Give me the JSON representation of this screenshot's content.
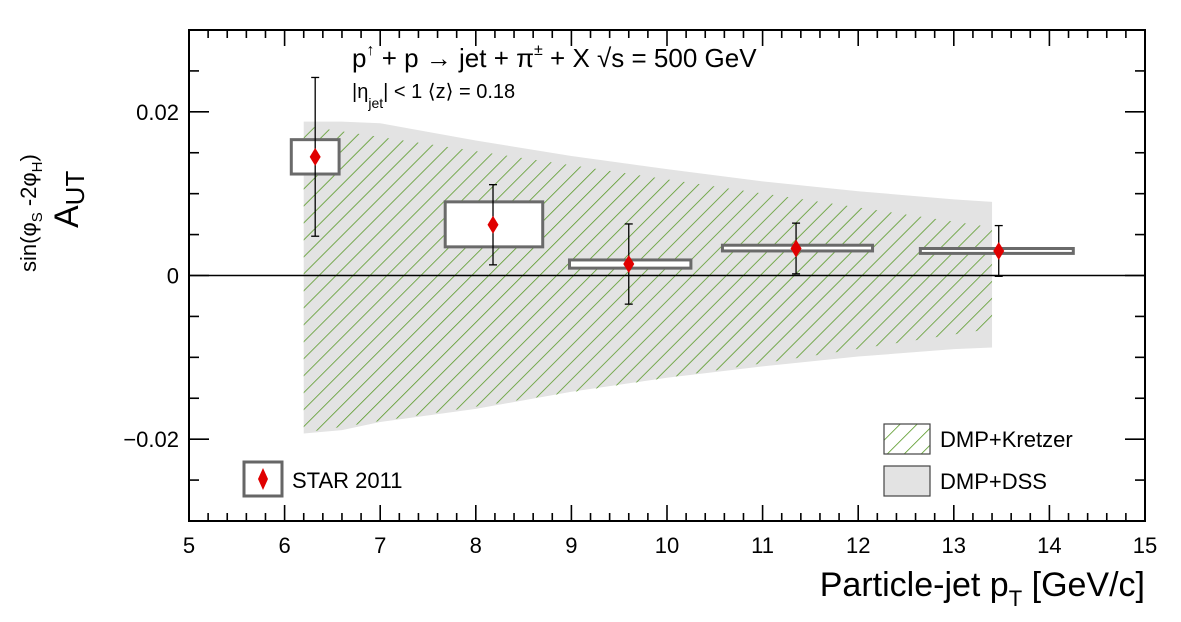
{
  "chart_data": {
    "type": "scatter",
    "title": "",
    "annotation": {
      "reaction_parts": [
        "p",
        "↑",
        " + p → jet + π",
        "±",
        " + X   √s = 500 GeV"
      ],
      "cuts_parts": [
        "|η",
        "jet",
        "| < 1   ⟨z⟩ = 0.18"
      ]
    },
    "xlabel": {
      "main": "Particle-jet p",
      "sub": "T",
      "unit": " [GeV/c]"
    },
    "ylabel": {
      "main": "A",
      "sub": "UT",
      "sup": "sin(φ",
      "sup_sub1": "S",
      "sup_mid": " -2φ",
      "sup_sub2": "H",
      "sup_end": ")"
    },
    "xlim": [
      5,
      15
    ],
    "ylim": [
      -0.03,
      0.03
    ],
    "x_ticks": [
      5,
      6,
      7,
      8,
      9,
      10,
      11,
      12,
      13,
      14,
      15
    ],
    "x_tick_labels": [
      "5",
      "6",
      "7",
      "8",
      "9",
      "10",
      "11",
      "12",
      "13",
      "14",
      "15"
    ],
    "y_ticks": [
      -0.02,
      0,
      0.02
    ],
    "y_tick_labels": [
      "−0.02",
      "0",
      "0.02"
    ],
    "zero_line": true,
    "grid": false,
    "legend_placement": "bottom-left and bottom-right",
    "series": [
      {
        "name": "STAR 2011",
        "marker": "diamond",
        "color": "#e00000",
        "points": [
          {
            "x": 6.32,
            "y": 0.0145,
            "stat_err": 0.0097,
            "sys_xlow": 6.07,
            "sys_xhigh": 6.57,
            "sys_ylow": 0.0124,
            "sys_yhigh": 0.0166
          },
          {
            "x": 8.18,
            "y": 0.0062,
            "stat_err": 0.0049,
            "sys_xlow": 7.68,
            "sys_xhigh": 8.7,
            "sys_ylow": 0.0035,
            "sys_yhigh": 0.009
          },
          {
            "x": 9.6,
            "y": 0.0014,
            "stat_err": 0.0049,
            "sys_xlow": 8.98,
            "sys_xhigh": 10.25,
            "sys_ylow": 0.0009,
            "sys_yhigh": 0.0019
          },
          {
            "x": 11.35,
            "y": 0.0033,
            "stat_err": 0.0031,
            "sys_xlow": 10.58,
            "sys_xhigh": 12.15,
            "sys_ylow": 0.003,
            "sys_yhigh": 0.0037
          },
          {
            "x": 13.47,
            "y": 0.003,
            "stat_err": 0.0031,
            "sys_xlow": 12.65,
            "sys_xhigh": 14.25,
            "sys_ylow": 0.0027,
            "sys_yhigh": 0.0033
          }
        ]
      }
    ],
    "bands": [
      {
        "name": "DMP+Kretzer",
        "style": "hatched",
        "color": "#5a9a2a",
        "x": [
          6.2,
          13.4
        ],
        "upper": [
          0.0183,
          0.0059
        ],
        "lower": [
          -0.0192,
          -0.0065
        ]
      },
      {
        "name": "DMP+DSS",
        "style": "filled",
        "color": "#e3e3e3",
        "x": [
          6.2,
          6.6,
          7.0,
          8.0,
          9.0,
          10.0,
          11.0,
          12.0,
          13.0,
          13.4
        ],
        "upper": [
          0.0188,
          0.0188,
          0.0186,
          0.0165,
          0.0146,
          0.013,
          0.0115,
          0.0103,
          0.0093,
          0.009
        ],
        "lower": [
          -0.0193,
          -0.0189,
          -0.0179,
          -0.0163,
          -0.0142,
          -0.0125,
          -0.0111,
          -0.0099,
          -0.009,
          -0.0088
        ]
      }
    ]
  }
}
